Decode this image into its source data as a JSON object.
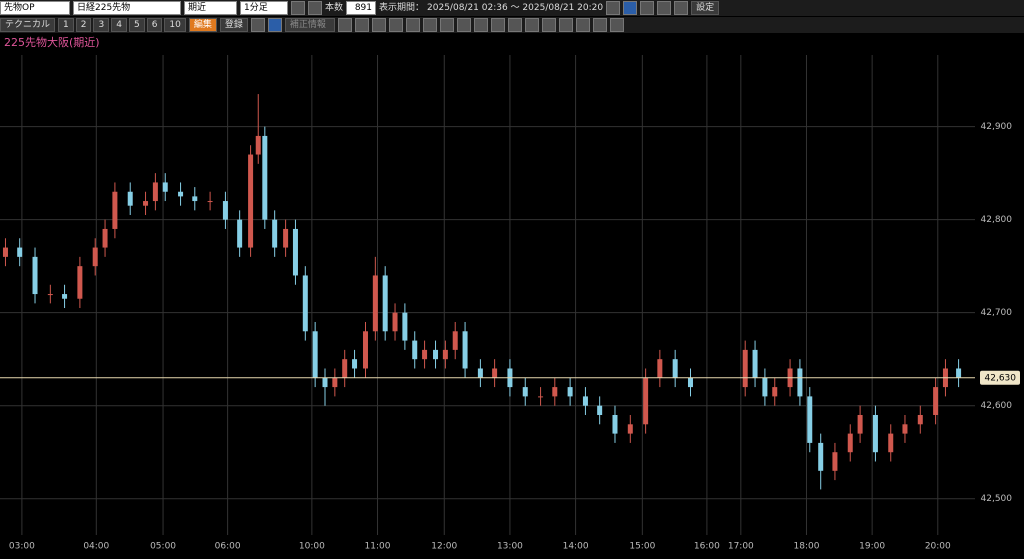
{
  "toolbar": {
    "market": "先物OP",
    "symbol": "日経225先物",
    "contract": "期近",
    "interval": "1分足",
    "count_label": "本数",
    "count": "891",
    "period_label": "表示期間：",
    "period": "2025/08/21 02:36 〜 2025/08/21 20:20",
    "settings": "設定",
    "technical": "テクニカル",
    "tabs": [
      "1",
      "2",
      "3",
      "4",
      "5",
      "6",
      "10"
    ],
    "edit": "編集",
    "register": "登録",
    "correction": "補正情報"
  },
  "chart_data": {
    "type": "candlestick",
    "title": "225先物大阪(期近)",
    "up_color": "#d0584e",
    "down_color": "#86cfe6",
    "grid": true,
    "xlim": [
      0,
      891
    ],
    "ylim": [
      42461,
      42977
    ],
    "xticks": [
      {
        "value": 20,
        "label": "03:00"
      },
      {
        "value": 88,
        "label": "04:00"
      },
      {
        "value": 149,
        "label": "05:00"
      },
      {
        "value": 208,
        "label": "06:00"
      },
      {
        "value": 285,
        "label": "10:00"
      },
      {
        "value": 345,
        "label": "11:00"
      },
      {
        "value": 406,
        "label": "12:00"
      },
      {
        "value": 466,
        "label": "13:00"
      },
      {
        "value": 526,
        "label": "14:00"
      },
      {
        "value": 587,
        "label": "15:00"
      },
      {
        "value": 646,
        "label": "16:00"
      },
      {
        "value": 677,
        "label": "17:00"
      },
      {
        "value": 737,
        "label": "18:00"
      },
      {
        "value": 797,
        "label": "19:00"
      },
      {
        "value": 857,
        "label": "20:00"
      }
    ],
    "yticks": [
      {
        "value": 42500,
        "label": "42,500"
      },
      {
        "value": 42600,
        "label": "42,600"
      },
      {
        "value": 42700,
        "label": "42,700"
      },
      {
        "value": 42800,
        "label": "42,800"
      },
      {
        "value": 42900,
        "label": "42,900"
      }
    ],
    "last_price": {
      "value": 42630,
      "label": "42,630"
    },
    "x": [
      5,
      18,
      32,
      46,
      59,
      73,
      87,
      96,
      105,
      119,
      133,
      142,
      151,
      165,
      178,
      192,
      206,
      219,
      229,
      236,
      242,
      251,
      261,
      270,
      279,
      288,
      297,
      306,
      315,
      324,
      334,
      343,
      352,
      361,
      370,
      379,
      388,
      398,
      407,
      416,
      425,
      439,
      452,
      466,
      480,
      494,
      507,
      521,
      535,
      548,
      562,
      576,
      590,
      603,
      617,
      631,
      681,
      690,
      699,
      708,
      722,
      731,
      740,
      750,
      763,
      777,
      786,
      800,
      814,
      827,
      841,
      855,
      864,
      876
    ],
    "open": [
      42760,
      42770,
      42760,
      42720,
      42720,
      42715,
      42750,
      42770,
      42790,
      42830,
      42815,
      42820,
      42840,
      42830,
      42825,
      42820,
      42820,
      42800,
      42770,
      42870,
      42890,
      42800,
      42770,
      42790,
      42740,
      42680,
      42630,
      42620,
      42630,
      42650,
      42640,
      42680,
      42740,
      42680,
      42700,
      42670,
      42650,
      42660,
      42650,
      42660,
      42680,
      42640,
      42630,
      42640,
      42620,
      42610,
      42610,
      42620,
      42610,
      42600,
      42590,
      42570,
      42580,
      42630,
      42650,
      42630,
      42620,
      42660,
      42630,
      42610,
      42620,
      42640,
      42610,
      42560,
      42530,
      42550,
      42570,
      42590,
      42550,
      42570,
      42580,
      42590,
      42620,
      42640
    ],
    "high": [
      42780,
      42780,
      42770,
      42730,
      42730,
      42760,
      42780,
      42800,
      42840,
      42840,
      42830,
      42850,
      42850,
      42840,
      42835,
      42830,
      42830,
      42810,
      42880,
      42935,
      42900,
      42810,
      42800,
      42800,
      42750,
      42690,
      42640,
      42640,
      42660,
      42660,
      42690,
      42760,
      42750,
      42710,
      42710,
      42680,
      42670,
      42670,
      42670,
      42690,
      42690,
      42650,
      42650,
      42650,
      42630,
      42620,
      42630,
      42630,
      42620,
      42610,
      42600,
      42590,
      42640,
      42660,
      42660,
      42640,
      42670,
      42670,
      42640,
      42630,
      42650,
      42650,
      42620,
      42570,
      42560,
      42580,
      42600,
      42600,
      42580,
      42590,
      42600,
      42630,
      42650,
      42650
    ],
    "low": [
      42750,
      42750,
      42710,
      42710,
      42705,
      42705,
      42740,
      42760,
      42780,
      42805,
      42805,
      42810,
      42820,
      42815,
      42810,
      42810,
      42790,
      42760,
      42760,
      42860,
      42790,
      42760,
      42760,
      42730,
      42670,
      42620,
      42600,
      42610,
      42620,
      42630,
      42630,
      42670,
      42670,
      42670,
      42660,
      42640,
      42640,
      42640,
      42640,
      42650,
      42630,
      42620,
      42620,
      42610,
      42600,
      42600,
      42600,
      42600,
      42590,
      42580,
      42560,
      42560,
      42570,
      42620,
      42620,
      42610,
      42610,
      42620,
      42600,
      42600,
      42610,
      42600,
      42550,
      42510,
      42520,
      42540,
      42560,
      42540,
      42540,
      42560,
      42570,
      42580,
      42610,
      42620
    ],
    "close": [
      42770,
      42760,
      42720,
      42720,
      42715,
      42750,
      42770,
      42790,
      42830,
      42815,
      42820,
      42840,
      42830,
      42825,
      42820,
      42820,
      42800,
      42770,
      42870,
      42890,
      42800,
      42770,
      42790,
      42740,
      42680,
      42630,
      42620,
      42630,
      42650,
      42640,
      42680,
      42740,
      42680,
      42700,
      42670,
      42650,
      42660,
      42650,
      42660,
      42680,
      42640,
      42630,
      42640,
      42620,
      42610,
      42610,
      42620,
      42610,
      42600,
      42590,
      42570,
      42580,
      42630,
      42650,
      42630,
      42620,
      42660,
      42630,
      42610,
      42620,
      42640,
      42610,
      42560,
      42530,
      42550,
      42570,
      42590,
      42550,
      42570,
      42580,
      42590,
      42620,
      42640,
      42630
    ]
  }
}
